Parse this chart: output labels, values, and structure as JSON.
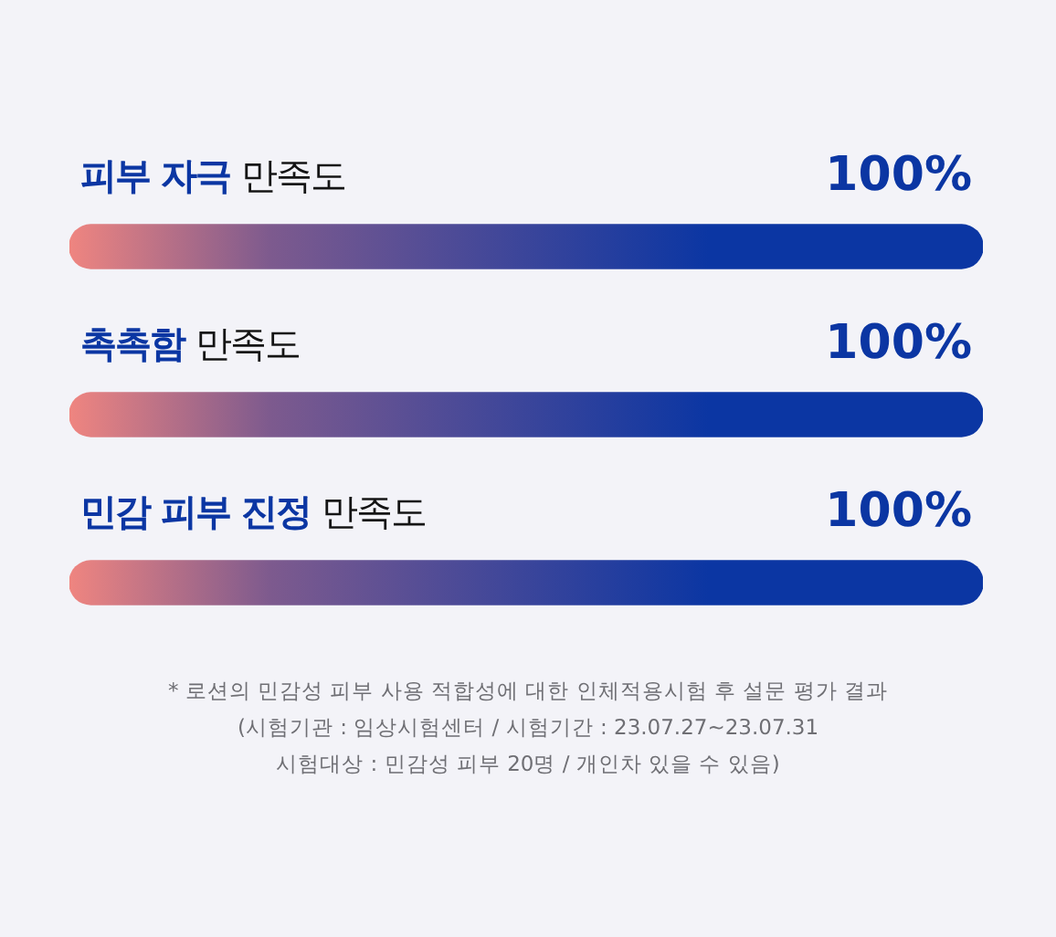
{
  "chart_data": {
    "type": "bar",
    "orientation": "horizontal",
    "categories": [
      "피부 자극 만족도",
      "촉촉함 만족도",
      "민감 피부 진정 만족도"
    ],
    "values": [
      100,
      100,
      100
    ],
    "value_labels": [
      "100%",
      "100%",
      "100%"
    ],
    "color": "#0b36a3",
    "tick_labels": false,
    "grid": false,
    "annotations": [
      "* 로션의 민감성 피부 사용 적합성에 대한 인체적용시험 후 설문 평가 결과",
      "(시험기관 : 임상시험센터 / 시험기간 : 23.07.27~23.07.31",
      "시험대상 : 민감성 피부 20명 / 개인차 있을 수 있음)"
    ]
  }
}
